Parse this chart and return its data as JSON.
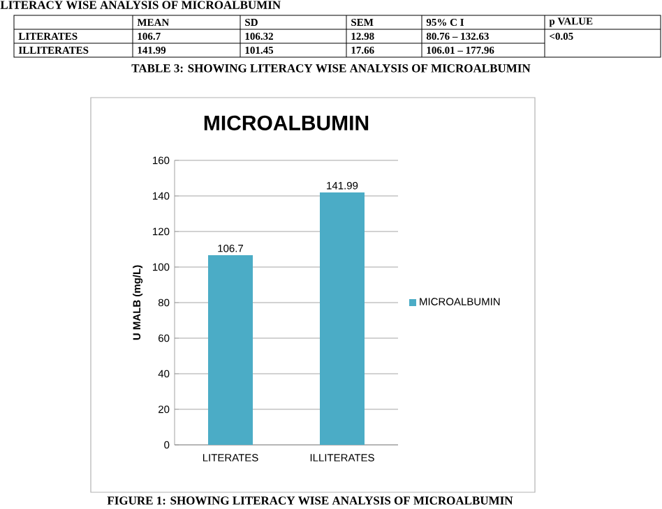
{
  "chart_data": {
    "type": "bar",
    "title": "MICROALBUMIN",
    "ylabel": "U MALB (mg/L)",
    "categories": [
      "LITERATES",
      "ILLITERATES"
    ],
    "series": [
      {
        "name": "MICROALBUMIN",
        "color": "#4bacc6",
        "values": [
          106.7,
          141.99
        ]
      }
    ],
    "ylim": [
      0,
      160
    ],
    "yticks": [
      0,
      20,
      40,
      60,
      80,
      100,
      120,
      140,
      160
    ],
    "grid": "y",
    "legend": "right",
    "data_labels": true,
    "annotations": [
      "LITERACY WISE ANALYSIS OF MICROALBUMIN",
      "MEAN",
      "SD",
      "SEM",
      "95% C I",
      "p VALUE",
      "LITERATES",
      "106.7",
      "106.32",
      "12.98",
      "80.76 – 132.63",
      "<0.05",
      "ILLITERATES",
      "141.99",
      "101.45",
      "17.66",
      "106.01 – 177.96",
      "TABLE 3: SHOWING LITERACY WISE ANALYSIS OF MICROALBUMIN",
      "FIGURE 1: SHOWING LITERACY  WISE ANALYSIS OF MICROALBUMIN"
    ]
  }
}
